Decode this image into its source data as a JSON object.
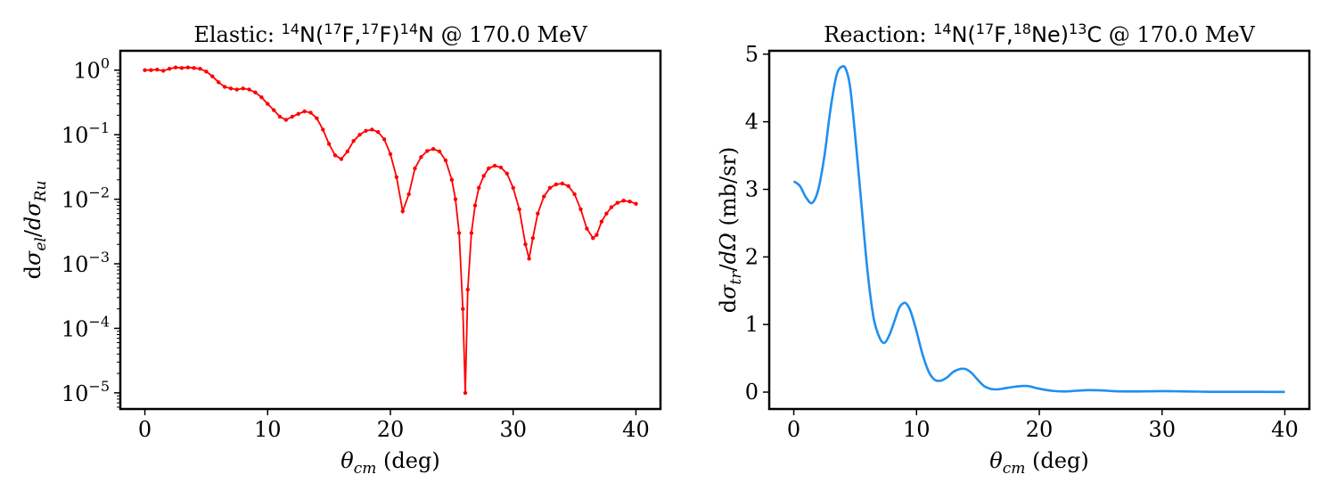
{
  "figure": "two-panel cross-section figure",
  "chart_data": [
    {
      "type": "scatter",
      "title": {
        "prefix": "Elastic: ",
        "reaction_tex": "14N(17F,17F)14N",
        "energy": "@ 170.0 MeV"
      },
      "xlabel": "θcm (deg)",
      "ylabel": "dσel/dσRu",
      "xlim": [
        -2,
        42
      ],
      "ylim_log10": [
        -5.25,
        0.3
      ],
      "yscale": "log",
      "xticks": [
        0,
        10,
        20,
        30,
        40
      ],
      "yticks_exponents": [
        0,
        -1,
        -2,
        -3,
        -4,
        -5
      ],
      "grid": false,
      "legend": "none",
      "color": "#ff0000",
      "marker": "dot",
      "series": [
        {
          "x": [
            0,
            0.5,
            1.0,
            1.5,
            2.0,
            2.5,
            3.0,
            3.5,
            4.0,
            4.5,
            5.0,
            5.5,
            6.0,
            6.5,
            7.0,
            7.5,
            8.0,
            8.5,
            9.0,
            9.5,
            10.0,
            10.5,
            11.0,
            11.5,
            12.0,
            12.5,
            13.0,
            13.5,
            14.0,
            14.5,
            15.0,
            15.5,
            16.0,
            16.5,
            17.0,
            17.5,
            18.0,
            18.5,
            19.0,
            19.5,
            20.0,
            20.5,
            21.0,
            21.5,
            22.0,
            22.5,
            23.0,
            23.5,
            24.0,
            24.5,
            25.0,
            25.3,
            25.6,
            25.9,
            26.1,
            26.3,
            26.6,
            26.9,
            27.2,
            27.6,
            28.0,
            28.5,
            29.0,
            29.5,
            30.0,
            30.5,
            31.0,
            31.3,
            31.6,
            32.0,
            32.5,
            33.0,
            33.5,
            34.0,
            34.5,
            35.0,
            35.5,
            36.0,
            36.5,
            36.8,
            37.2,
            37.6,
            38.0,
            38.5,
            39.0,
            39.5,
            40.0
          ],
          "y": [
            1.0,
            1.0,
            1.02,
            0.98,
            1.05,
            1.1,
            1.08,
            1.1,
            1.08,
            1.05,
            0.95,
            0.8,
            0.65,
            0.55,
            0.52,
            0.5,
            0.52,
            0.5,
            0.45,
            0.38,
            0.3,
            0.24,
            0.19,
            0.17,
            0.19,
            0.21,
            0.23,
            0.22,
            0.18,
            0.12,
            0.072,
            0.048,
            0.042,
            0.055,
            0.08,
            0.1,
            0.115,
            0.12,
            0.11,
            0.085,
            0.05,
            0.022,
            0.0065,
            0.012,
            0.03,
            0.045,
            0.056,
            0.06,
            0.055,
            0.04,
            0.02,
            0.01,
            0.003,
            0.0002,
            1e-05,
            0.0004,
            0.003,
            0.008,
            0.015,
            0.023,
            0.03,
            0.033,
            0.031,
            0.025,
            0.015,
            0.007,
            0.002,
            0.0012,
            0.0025,
            0.006,
            0.011,
            0.015,
            0.017,
            0.0175,
            0.016,
            0.012,
            0.007,
            0.0035,
            0.0025,
            0.0028,
            0.0045,
            0.006,
            0.0075,
            0.0088,
            0.0095,
            0.0092,
            0.0085
          ]
        }
      ]
    },
    {
      "type": "line",
      "title": {
        "prefix": "Reaction: ",
        "reaction_tex": "14N(17F,18Ne)13C",
        "energy": "@ 170.0 MeV"
      },
      "xlabel": "θcm (deg)",
      "ylabel": "dσtr/dΩ (mb/sr)",
      "xlim": [
        -2,
        42
      ],
      "ylim": [
        -0.25,
        5.05
      ],
      "yscale": "linear",
      "xticks": [
        0,
        10,
        20,
        30,
        40
      ],
      "yticks": [
        0,
        1,
        2,
        3,
        4,
        5
      ],
      "grid": false,
      "legend": "none",
      "color": "#1f8fef",
      "series": [
        {
          "x": [
            0,
            0.5,
            1.0,
            1.5,
            2.0,
            2.5,
            3.0,
            3.5,
            4.0,
            4.3,
            4.6,
            5.0,
            5.5,
            6.0,
            6.5,
            7.0,
            7.4,
            7.8,
            8.2,
            8.6,
            9.0,
            9.3,
            9.6,
            10.0,
            10.5,
            11.0,
            11.5,
            12.0,
            12.5,
            13.0,
            13.5,
            14.0,
            14.5,
            15.0,
            15.5,
            16.0,
            16.5,
            17.0,
            18.0,
            19.0,
            20.0,
            21.0,
            22.0,
            23.0,
            24.0,
            25.0,
            26.0,
            27.0,
            28.0,
            30.0,
            32.0,
            34.0,
            36.0,
            38.0,
            40.0
          ],
          "y": [
            3.12,
            3.05,
            2.88,
            2.8,
            3.0,
            3.5,
            4.2,
            4.7,
            4.82,
            4.75,
            4.5,
            3.8,
            2.8,
            1.8,
            1.1,
            0.8,
            0.73,
            0.85,
            1.05,
            1.25,
            1.32,
            1.28,
            1.15,
            0.9,
            0.55,
            0.3,
            0.18,
            0.17,
            0.22,
            0.3,
            0.34,
            0.34,
            0.28,
            0.18,
            0.09,
            0.05,
            0.04,
            0.05,
            0.08,
            0.09,
            0.05,
            0.02,
            0.01,
            0.02,
            0.03,
            0.025,
            0.015,
            0.01,
            0.01,
            0.015,
            0.01,
            0.005,
            0.005,
            0.004,
            0.003
          ]
        }
      ]
    }
  ]
}
